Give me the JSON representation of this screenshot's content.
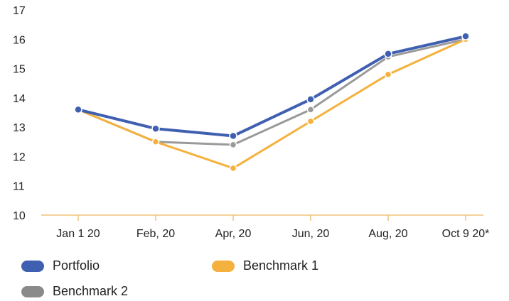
{
  "chart_data": {
    "type": "line",
    "categories": [
      "Jan 1 20",
      "Feb, 20",
      "Apr, 20",
      "Jun, 20",
      "Aug, 20",
      "Oct 9 20*"
    ],
    "ylim": [
      10,
      17
    ],
    "yticks": [
      10,
      11,
      12,
      13,
      14,
      15,
      16,
      17
    ],
    "grid": false,
    "legend_position": "bottom",
    "series": [
      {
        "name": "Benchmark 2",
        "color": "#9a9a9a",
        "values": [
          13.6,
          12.5,
          12.4,
          13.6,
          15.4,
          16.0
        ]
      },
      {
        "name": "Benchmark 1",
        "color": "#f5b13d",
        "values": [
          13.6,
          12.5,
          11.6,
          13.2,
          14.8,
          16.0
        ]
      },
      {
        "name": "Portfolio",
        "color": "#3f5fb0",
        "values": [
          13.6,
          12.95,
          12.7,
          13.95,
          15.5,
          16.1
        ]
      }
    ]
  },
  "legend": {
    "portfolio": "Portfolio",
    "benchmark1": "Benchmark 1",
    "benchmark2": "Benchmark 2"
  }
}
